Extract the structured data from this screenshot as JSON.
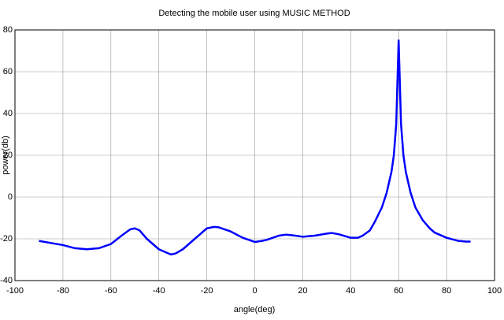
{
  "chart_data": {
    "type": "line",
    "title": "Detecting the mobile user using MUSIC METHOD",
    "x_label": "angle(deg)",
    "y_label": "power(db)",
    "x": [
      -90,
      -85,
      -80,
      -75,
      -70,
      -65,
      -60,
      -55,
      -52,
      -50,
      -48,
      -45,
      -40,
      -35,
      -33,
      -30,
      -25,
      -20,
      -17,
      -15,
      -10,
      -5,
      0,
      3,
      5,
      10,
      13,
      15,
      20,
      25,
      30,
      32,
      35,
      40,
      43,
      45,
      48,
      50,
      53,
      55,
      57,
      58,
      59,
      60,
      61,
      62,
      63,
      65,
      67,
      70,
      73,
      75,
      80,
      85,
      88,
      90
    ],
    "series": [
      {
        "name": "power",
        "color": "#0000ff",
        "values": [
          -21,
          -22,
          -23,
          -24.5,
          -25,
          -24.5,
          -22.5,
          -18,
          -15.5,
          -15,
          -16,
          -20,
          -25,
          -27.5,
          -27,
          -25,
          -20,
          -15,
          -14.3,
          -14.5,
          -16.5,
          -19.5,
          -21.5,
          -21,
          -20.5,
          -18.5,
          -18,
          -18.2,
          -19,
          -18.5,
          -17.5,
          -17.2,
          -17.8,
          -19.5,
          -19.5,
          -18.5,
          -16,
          -12,
          -5,
          2,
          12,
          20,
          35,
          75,
          35,
          20,
          12,
          2,
          -5,
          -11,
          -15,
          -17,
          -19.5,
          -21,
          -21.3,
          -21.3
        ]
      }
    ],
    "xlim": [
      -100,
      100
    ],
    "xticks": [
      -100,
      -80,
      -60,
      -40,
      -20,
      0,
      20,
      40,
      60,
      80,
      100
    ],
    "ylim": [
      -40,
      80
    ],
    "yticks": [
      -40,
      -20,
      0,
      20,
      40,
      60,
      80
    ],
    "grid": true
  }
}
